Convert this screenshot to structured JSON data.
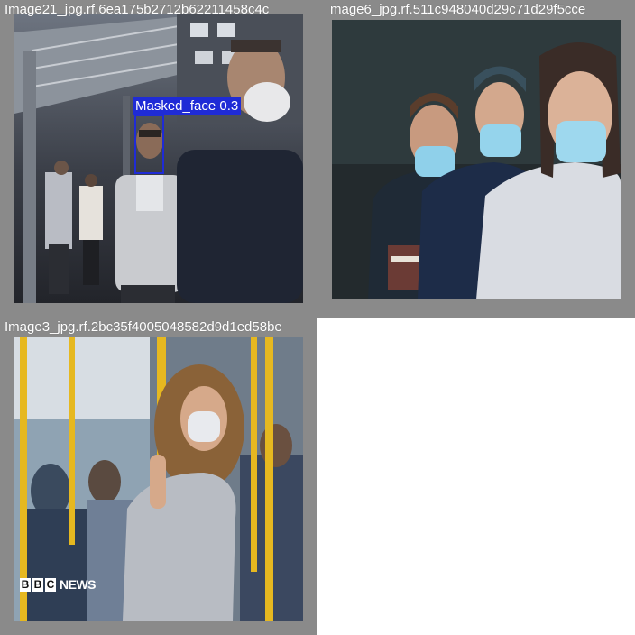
{
  "tiles": [
    {
      "filename": "Image21_jpg.rf.6ea175b2712b62211458c4c",
      "detection": {
        "class": "Masked_face",
        "confidence": 0.3,
        "label": "Masked_face 0.3"
      }
    },
    {
      "filename": "mage6_jpg.rf.511c948040d29c71d29f5cce"
    },
    {
      "filename": "Image3_jpg.rf.2bc35f4005048582d9d1ed58be",
      "watermark": {
        "letters": [
          "B",
          "B",
          "C"
        ],
        "word": "NEWS"
      }
    },
    {
      "filename": ""
    }
  ],
  "colors": {
    "tile_background": "#8a8a8a",
    "detection_box": "#1f2bd6",
    "label_text": "#ffffff"
  }
}
